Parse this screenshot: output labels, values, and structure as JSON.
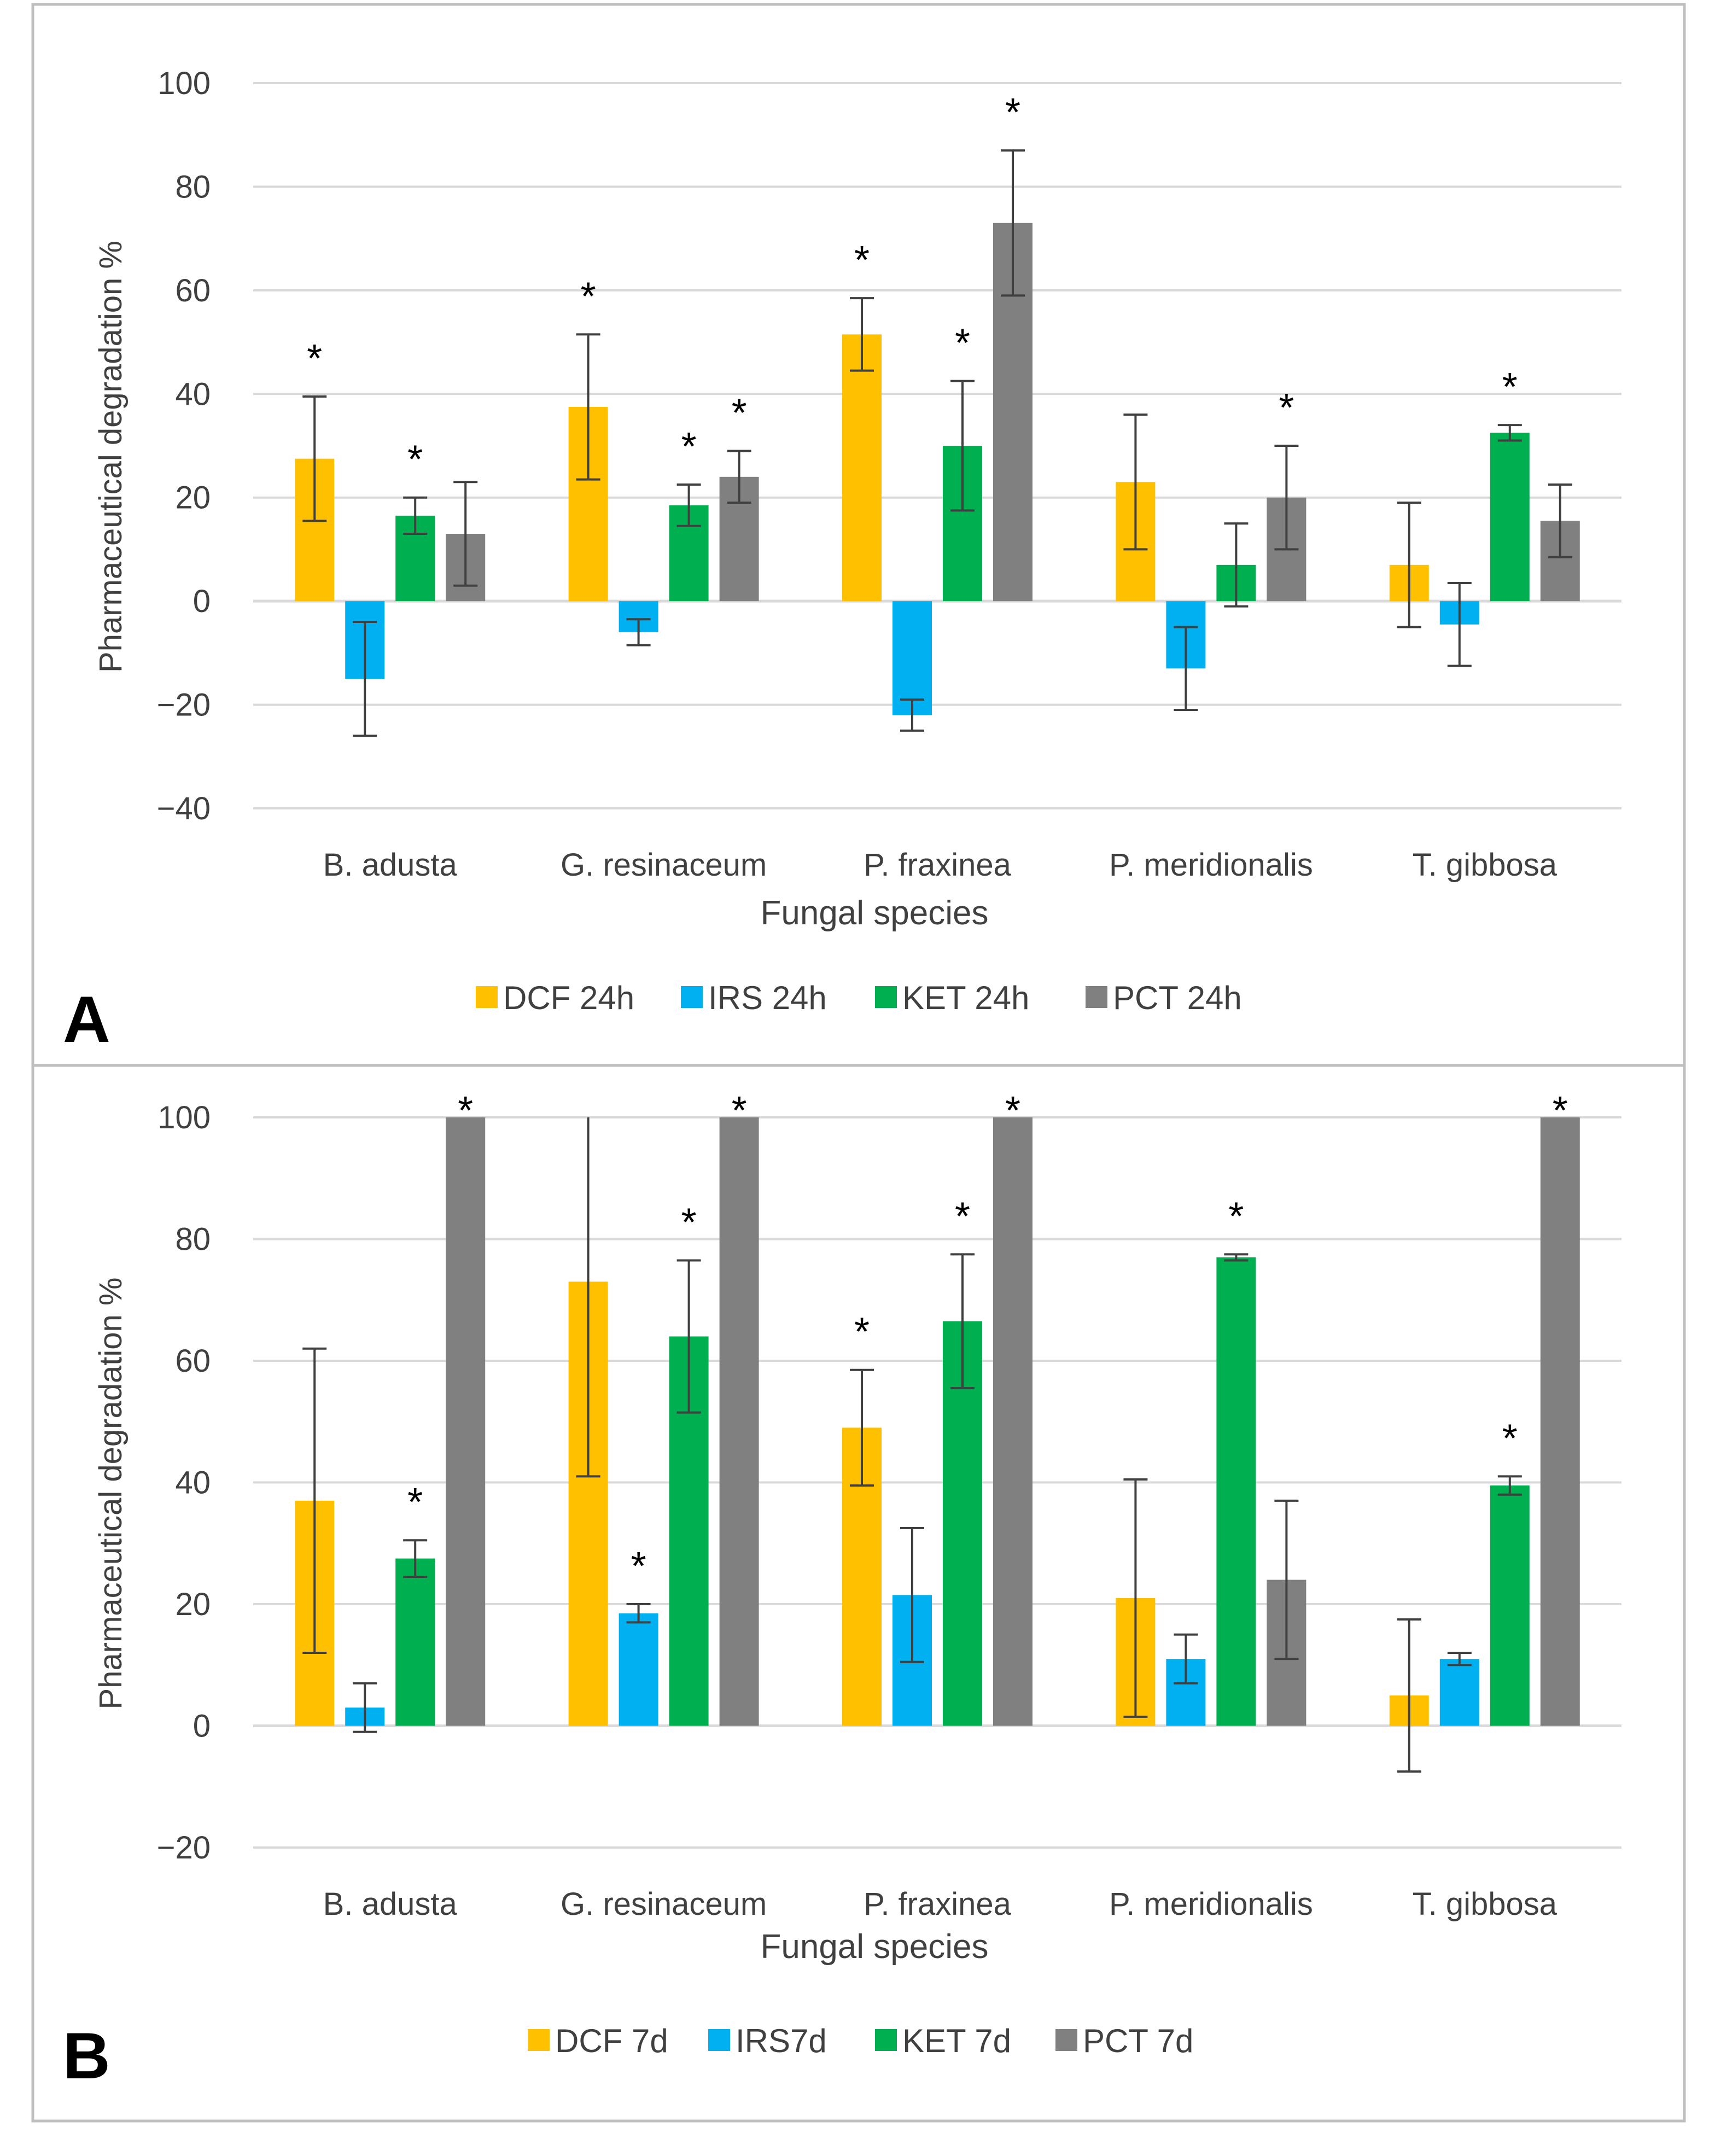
{
  "panels": [
    {
      "letter": "A"
    },
    {
      "letter": "B"
    }
  ],
  "colors": {
    "DCF": "#FFC000",
    "IRS": "#00B0F0",
    "KET": "#00B050",
    "PCT": "#808080",
    "grid": "#D9D9D9",
    "errorbar": "#404040",
    "frame": "#BFBFBF",
    "axis_text": "#404040"
  },
  "chart_data": [
    {
      "type": "bar",
      "panel": "A",
      "title": "",
      "xlabel": "Fungal species",
      "ylabel": "Pharmaceutical degradation %",
      "ylim": [
        -40,
        100
      ],
      "yticks": [
        -40,
        -20,
        0,
        20,
        40,
        60,
        80,
        100
      ],
      "ytick_labels": [
        "−40",
        "−20",
        "0",
        "20",
        "40",
        "60",
        "80",
        "100"
      ],
      "categories": [
        "B. adusta",
        "G. resinaceum",
        "P. fraxinea",
        "P. meridionalis",
        "T. gibbosa"
      ],
      "series": [
        {
          "key": "DCF",
          "name": "DCF 24h",
          "values": [
            27.5,
            37.5,
            51.5,
            23,
            7
          ],
          "errors": [
            12,
            14,
            7,
            13,
            12
          ],
          "significant": [
            true,
            true,
            true,
            false,
            false
          ]
        },
        {
          "key": "IRS",
          "name": "IRS 24h",
          "values": [
            -15,
            -6,
            -22,
            -13,
            -4.5
          ],
          "errors": [
            11,
            2.5,
            3,
            8,
            8
          ],
          "significant": [
            false,
            false,
            false,
            false,
            false
          ]
        },
        {
          "key": "KET",
          "name": "KET 24h",
          "values": [
            16.5,
            18.5,
            30,
            7,
            32.5
          ],
          "errors": [
            3.5,
            4,
            12.5,
            8,
            1.5
          ],
          "significant": [
            true,
            true,
            true,
            false,
            true
          ]
        },
        {
          "key": "PCT",
          "name": "PCT 24h",
          "values": [
            13,
            24,
            73,
            20,
            15.5
          ],
          "errors": [
            10,
            5,
            14,
            10,
            7
          ],
          "significant": [
            false,
            true,
            true,
            true,
            false
          ]
        }
      ],
      "significance_marker": "*",
      "legend": {
        "placement": "bottom"
      }
    },
    {
      "type": "bar",
      "panel": "B",
      "title": "",
      "xlabel": "Fungal species",
      "ylabel": "Pharmaceutical degradation %",
      "ylim": [
        -20,
        100
      ],
      "yticks": [
        -20,
        0,
        20,
        40,
        60,
        80,
        100
      ],
      "ytick_labels": [
        "−20",
        "0",
        "20",
        "40",
        "60",
        "80",
        "100"
      ],
      "categories": [
        "B. adusta",
        "G. resinaceum",
        "P. fraxinea",
        "P. meridionalis",
        "T. gibbosa"
      ],
      "series": [
        {
          "key": "DCF",
          "name": "DCF 7d",
          "values": [
            37,
            73,
            49,
            21,
            5
          ],
          "errors": [
            25,
            32,
            9.5,
            19.5,
            12.5
          ],
          "significant": [
            false,
            false,
            true,
            false,
            false
          ]
        },
        {
          "key": "IRS",
          "name": "IRS7d",
          "values": [
            3,
            18.5,
            21.5,
            11,
            11
          ],
          "errors": [
            4,
            1.5,
            11,
            4,
            1
          ],
          "significant": [
            false,
            true,
            false,
            false,
            false
          ]
        },
        {
          "key": "KET",
          "name": "KET 7d",
          "values": [
            27.5,
            64,
            66.5,
            77,
            39.5
          ],
          "errors": [
            3,
            12.5,
            11,
            0.5,
            1.5
          ],
          "significant": [
            true,
            true,
            true,
            true,
            true
          ]
        },
        {
          "key": "PCT",
          "name": "PCT 7d",
          "values": [
            100,
            100,
            100,
            24,
            100
          ],
          "errors": [
            0,
            0,
            0,
            13,
            0
          ],
          "significant": [
            true,
            true,
            true,
            false,
            true
          ]
        }
      ],
      "significance_marker": "*",
      "legend": {
        "placement": "bottom"
      }
    }
  ]
}
